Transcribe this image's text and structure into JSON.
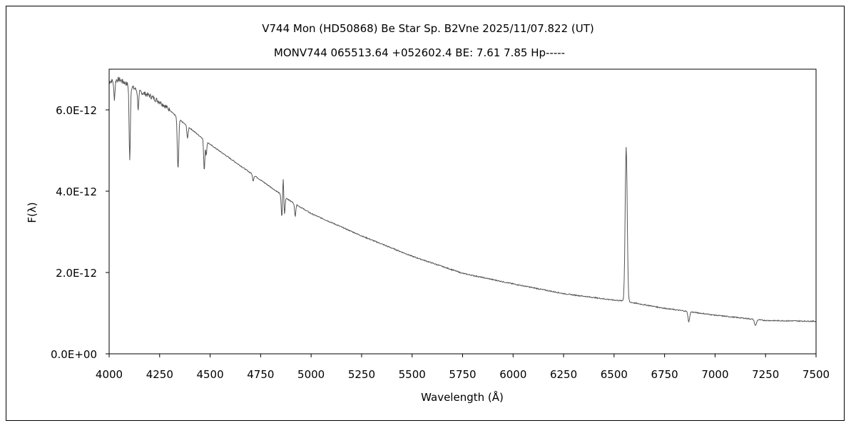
{
  "chart_data": {
    "type": "line",
    "title": "V744 Mon (HD50868)    Be Star    Sp. B2Vne    2025/11/07.822 (UT)",
    "subtitle": "MONV744 065513.64 +052602.4 BE: 7.61 7.85 Hp-----",
    "xlabel": "Wavelength (Å)",
    "ylabel": "F(λ)",
    "xlim": [
      4000,
      7500
    ],
    "ylim": [
      0,
      7e-12
    ],
    "xticks": [
      "4000",
      "4250",
      "4500",
      "4750",
      "5000",
      "5250",
      "5500",
      "5750",
      "6000",
      "6250",
      "6500",
      "6750",
      "7000",
      "7250",
      "7500"
    ],
    "yticks": [
      "0.0E+00",
      "2.0E-12",
      "4.0E-12",
      "6.0E-12"
    ],
    "grid": false,
    "continuum": {
      "x": [
        4000,
        4050,
        4100,
        4150,
        4200,
        4250,
        4300,
        4350,
        4400,
        4450,
        4500,
        4600,
        4700,
        4800,
        4900,
        5000,
        5250,
        5500,
        5750,
        6000,
        6250,
        6500,
        6550,
        6600,
        6750,
        7000,
        7250,
        7500
      ],
      "y": [
        6.7e-12,
        6.75e-12,
        6.6e-12,
        6.45e-12,
        6.35e-12,
        6.2e-12,
        6e-12,
        5.75e-12,
        5.55e-12,
        5.35e-12,
        5.15e-12,
        4.8e-12,
        4.45e-12,
        4.1e-12,
        3.75e-12,
        3.45e-12,
        2.9e-12,
        2.4e-12,
        1.98e-12,
        1.72e-12,
        1.48e-12,
        1.32e-12,
        1.3e-12,
        1.25e-12,
        1.12e-12,
        9.5e-13,
        8.2e-13,
        8e-13
      ]
    },
    "features": [
      {
        "center": 4026,
        "depth": 4.5e-13,
        "width": 3
      },
      {
        "center": 4102,
        "depth": 1.85e-12,
        "width": 3
      },
      {
        "center": 4144,
        "depth": 4.5e-13,
        "width": 3
      },
      {
        "center": 4341,
        "depth": 1.25e-12,
        "width": 3.5
      },
      {
        "center": 4388,
        "depth": 3e-13,
        "width": 3
      },
      {
        "center": 4471,
        "depth": 7.5e-13,
        "width": 3
      },
      {
        "center": 4481,
        "depth": 3.5e-13,
        "width": 2.5
      },
      {
        "center": 4713,
        "depth": 1.5e-13,
        "width": 3
      },
      {
        "center": 4855,
        "depth": 5.5e-13,
        "width": 3
      },
      {
        "center": 4862,
        "depth": -5e-13,
        "width": 2.5
      },
      {
        "center": 4868,
        "depth": 4.5e-13,
        "width": 3
      },
      {
        "center": 4921,
        "depth": 3e-13,
        "width": 3
      },
      {
        "center": 6560,
        "depth": -3.8e-12,
        "width": 5
      },
      {
        "center": 6870,
        "depth": 2.5e-13,
        "width": 4
      },
      {
        "center": 7200,
        "depth": 1.5e-13,
        "width": 5
      }
    ]
  }
}
